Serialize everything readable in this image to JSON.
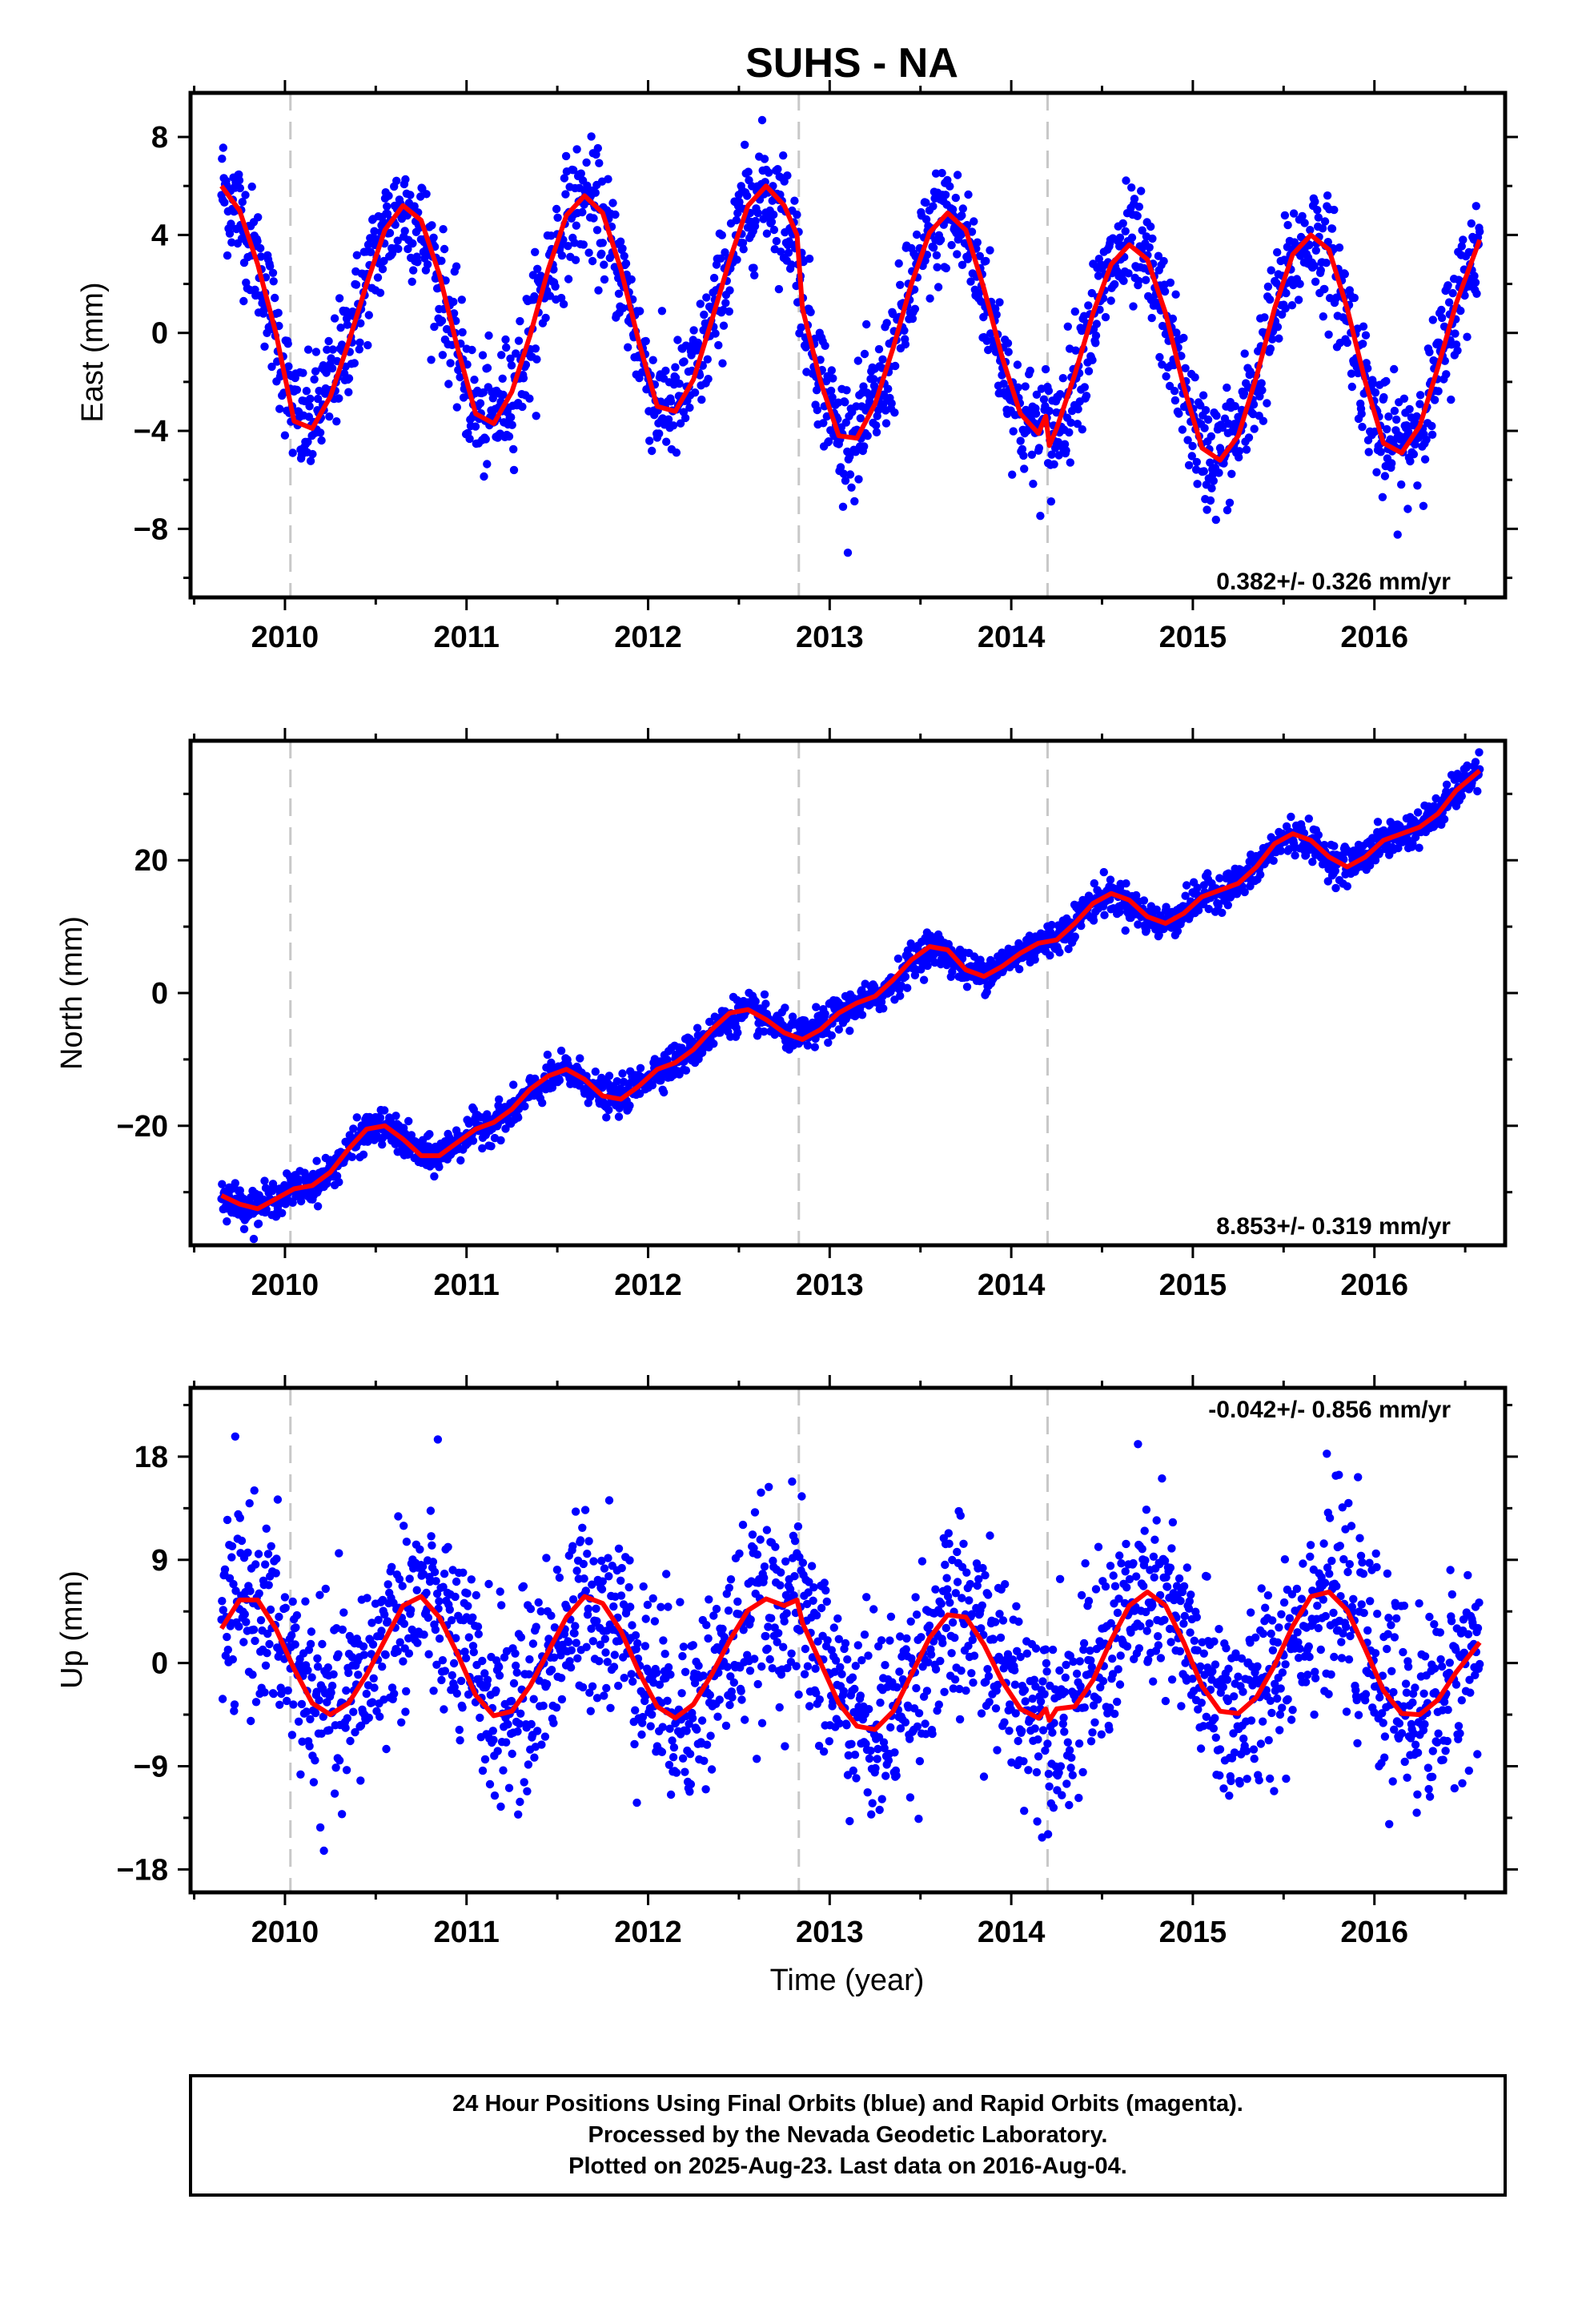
{
  "page": {
    "title": "SUHS - NA"
  },
  "colors": {
    "final_orbits": "#0000ff",
    "model_fit": "#ff0000",
    "reference_lines": "#c8c8c8",
    "frame": "#000000"
  },
  "chart_data": [
    {
      "type": "scatter",
      "component": "east",
      "ylabel": "East (mm)",
      "xlabel": "",
      "xlim": [
        2009.48,
        2016.72
      ],
      "ylim": [
        -10.8,
        9.8
      ],
      "yticks": [
        -8,
        -4,
        0,
        4,
        8
      ],
      "yticks_minor_step": 2,
      "xticks": [
        2010,
        2011,
        2012,
        2013,
        2014,
        2015,
        2016
      ],
      "equipment_change_epochs": [
        2010.03,
        2012.83,
        2014.2
      ],
      "rate_label": "0.382+/- 0.326 mm/yr",
      "rate_position": "bottom-right",
      "series": [
        {
          "type": "scatter",
          "values_description_removed": true,
          "x": [
            2009.65,
            2009.85,
            2010.0,
            2010.1,
            2010.3,
            2010.5,
            2010.65,
            2010.85,
            2011.05,
            2011.3,
            2011.5,
            2011.65,
            2011.85,
            2012.05,
            2012.3,
            2012.5,
            2012.65,
            2012.85,
            2013.05,
            2013.3,
            2013.5,
            2013.65,
            2013.85,
            2014.05,
            2014.2,
            2014.3,
            2014.5,
            2014.65,
            2014.85,
            2015.05,
            2015.3,
            2015.5,
            2015.65,
            2015.85,
            2016.05,
            2016.3,
            2016.55
          ],
          "y": [
            6.0,
            3.2,
            -1.5,
            -3.8,
            -0.5,
            3.4,
            5.1,
            1.6,
            -3.6,
            -1.8,
            3.5,
            5.6,
            2.0,
            -3.2,
            -1.2,
            4.2,
            6.0,
            2.2,
            -4.3,
            -2.4,
            2.6,
            4.9,
            1.5,
            -3.8,
            -4.2,
            -3.0,
            1.2,
            3.6,
            -0.2,
            -5.2,
            -3.5,
            1.5,
            4.0,
            0.5,
            -4.8,
            -3.0,
            3.8
          ]
        },
        {
          "name": "",
          "type": "line",
          "x": [
            2009.65,
            2009.75,
            2009.85,
            2009.95,
            2010.05,
            2010.15,
            2010.25,
            2010.35,
            2010.45,
            2010.55,
            2010.65,
            2010.75,
            2010.85,
            2010.95,
            2011.05,
            2011.15,
            2011.25,
            2011.35,
            2011.45,
            2011.55,
            2011.65,
            2011.75,
            2011.85,
            2011.95,
            2012.05,
            2012.15,
            2012.25,
            2012.35,
            2012.45,
            2012.55,
            2012.65,
            2012.75,
            2012.82,
            2012.85,
            2012.95,
            2013.05,
            2013.15,
            2013.25,
            2013.35,
            2013.45,
            2013.55,
            2013.65,
            2013.75,
            2013.85,
            2013.95,
            2014.05,
            2014.15,
            2014.19,
            2014.21,
            2014.25,
            2014.35,
            2014.45,
            2014.55,
            2014.65,
            2014.75,
            2014.85,
            2014.95,
            2015.05,
            2015.15,
            2015.25,
            2015.35,
            2015.45,
            2015.55,
            2015.65,
            2015.75,
            2015.85,
            2015.95,
            2016.05,
            2016.15,
            2016.25,
            2016.35,
            2016.45,
            2016.58
          ],
          "y": [
            6.0,
            5.0,
            2.8,
            0.0,
            -3.6,
            -3.9,
            -2.6,
            -0.4,
            2.0,
            4.2,
            5.2,
            4.6,
            2.4,
            -0.6,
            -3.3,
            -3.7,
            -2.4,
            -0.1,
            2.6,
            4.8,
            5.6,
            4.9,
            2.6,
            -0.4,
            -3.0,
            -3.2,
            -1.9,
            0.5,
            3.0,
            5.2,
            6.0,
            5.2,
            4.0,
            1.0,
            -2.0,
            -4.2,
            -4.3,
            -2.9,
            -0.6,
            2.0,
            4.1,
            4.9,
            4.2,
            1.8,
            -1.0,
            -3.3,
            -4.1,
            -3.4,
            -4.6,
            -3.9,
            -1.7,
            0.8,
            2.8,
            3.6,
            3.0,
            0.8,
            -2.2,
            -4.7,
            -5.2,
            -4.2,
            -1.8,
            1.0,
            3.2,
            4.0,
            3.4,
            1.0,
            -2.0,
            -4.5,
            -4.9,
            -3.8,
            -1.4,
            1.2,
            3.8
          ]
        }
      ]
    },
    {
      "type": "scatter",
      "component": "north",
      "ylabel": "North (mm)",
      "xlabel": "",
      "xlim": [
        2009.48,
        2016.72
      ],
      "ylim": [
        -38,
        38
      ],
      "yticks": [
        -20,
        0,
        20
      ],
      "yticks_minor_step": 10,
      "xticks": [
        2010,
        2011,
        2012,
        2013,
        2014,
        2015,
        2016
      ],
      "equipment_change_epochs": [
        2010.03,
        2012.83,
        2014.2
      ],
      "rate_label": "8.853+/- 0.319 mm/yr",
      "rate_position": "bottom-right",
      "series": [
        {
          "type": "scatter",
          "x": [
            2009.65,
            2009.8,
            2010.0,
            2010.2,
            2010.5,
            2010.8,
            2011.0,
            2011.3,
            2011.55,
            2011.8,
            2012.0,
            2012.3,
            2012.55,
            2012.8,
            2013.0,
            2013.3,
            2013.55,
            2013.75,
            2014.0,
            2014.2,
            2014.5,
            2014.8,
            2015.0,
            2015.3,
            2015.55,
            2015.8,
            2016.0,
            2016.3,
            2016.58
          ],
          "y": [
            -30,
            -32,
            -30,
            -28,
            -20,
            -25,
            -21,
            -18,
            -12,
            -16,
            -12,
            -8,
            -3,
            -6,
            -4,
            -1,
            7,
            3,
            6,
            8,
            15,
            10,
            14,
            17,
            24,
            19,
            22,
            26,
            34
          ]
        },
        {
          "name": "",
          "type": "line",
          "x": [
            2009.65,
            2009.75,
            2009.85,
            2009.95,
            2010.05,
            2010.15,
            2010.25,
            2010.35,
            2010.45,
            2010.55,
            2010.65,
            2010.75,
            2010.85,
            2010.95,
            2011.05,
            2011.15,
            2011.25,
            2011.35,
            2011.45,
            2011.55,
            2011.65,
            2011.75,
            2011.85,
            2011.95,
            2012.05,
            2012.15,
            2012.25,
            2012.35,
            2012.45,
            2012.55,
            2012.65,
            2012.75,
            2012.85,
            2012.95,
            2013.05,
            2013.15,
            2013.25,
            2013.35,
            2013.45,
            2013.55,
            2013.65,
            2013.75,
            2013.85,
            2013.95,
            2014.05,
            2014.15,
            2014.25,
            2014.35,
            2014.45,
            2014.55,
            2014.65,
            2014.75,
            2014.85,
            2014.95,
            2015.05,
            2015.15,
            2015.25,
            2015.35,
            2015.45,
            2015.55,
            2015.65,
            2015.75,
            2015.85,
            2015.95,
            2016.05,
            2016.15,
            2016.25,
            2016.35,
            2016.45,
            2016.58
          ],
          "y": [
            -30.5,
            -31.8,
            -32.5,
            -31.0,
            -29.5,
            -29.0,
            -27.0,
            -23.5,
            -20.5,
            -20.0,
            -22.0,
            -24.5,
            -24.5,
            -22.5,
            -20.5,
            -19.5,
            -17.5,
            -14.5,
            -12.5,
            -11.5,
            -13.0,
            -15.5,
            -16.0,
            -14.0,
            -11.5,
            -10.5,
            -8.5,
            -5.5,
            -3.0,
            -2.5,
            -4.0,
            -6.0,
            -7.0,
            -5.5,
            -3.0,
            -1.5,
            -0.5,
            2.0,
            5.0,
            7.0,
            6.5,
            3.5,
            2.5,
            4.0,
            6.0,
            7.5,
            8.0,
            10.5,
            13.5,
            15.0,
            14.0,
            11.5,
            10.5,
            12.0,
            14.5,
            15.5,
            16.5,
            19.0,
            22.5,
            24.0,
            23.0,
            20.5,
            19.0,
            20.5,
            23.0,
            24.0,
            25.0,
            27.0,
            30.5,
            33.5
          ]
        }
      ]
    },
    {
      "type": "scatter",
      "component": "up",
      "ylabel": "Up (mm)",
      "xlabel": "Time (year)",
      "xlim": [
        2009.48,
        2016.72
      ],
      "ylim": [
        -20,
        24
      ],
      "yticks": [
        -18,
        -9,
        0,
        9,
        18
      ],
      "yticks_minor_step": 4.5,
      "xticks": [
        2010,
        2011,
        2012,
        2013,
        2014,
        2015,
        2016
      ],
      "equipment_change_epochs": [
        2010.03,
        2012.83,
        2014.2
      ],
      "rate_label": "-0.042+/- 0.856 mm/yr",
      "rate_position": "top-right",
      "series": [
        {
          "type": "scatter",
          "x": [
            2009.65,
            2009.8,
            2010.0,
            2010.3,
            2010.55,
            2010.8,
            2011.05,
            2011.3,
            2011.55,
            2011.8,
            2012.05,
            2012.3,
            2012.55,
            2012.8,
            2013.05,
            2013.3,
            2013.55,
            2013.8,
            2014.05,
            2014.3,
            2014.55,
            2014.8,
            2015.05,
            2015.3,
            2015.55,
            2015.8,
            2016.05,
            2016.3,
            2016.55
          ],
          "y": [
            3,
            6,
            1,
            -5,
            2,
            6,
            1,
            -5,
            1,
            6,
            1,
            -5,
            2,
            6,
            0,
            -6,
            -1,
            4,
            0,
            -5,
            2,
            6,
            0,
            -5,
            1,
            6,
            0,
            -5,
            1
          ]
        },
        {
          "name": "",
          "type": "line",
          "x": [
            2009.65,
            2009.75,
            2009.85,
            2009.95,
            2010.05,
            2010.15,
            2010.25,
            2010.35,
            2010.45,
            2010.55,
            2010.65,
            2010.75,
            2010.85,
            2010.95,
            2011.05,
            2011.15,
            2011.25,
            2011.35,
            2011.45,
            2011.55,
            2011.65,
            2011.75,
            2011.85,
            2011.95,
            2012.05,
            2012.15,
            2012.25,
            2012.35,
            2012.45,
            2012.55,
            2012.65,
            2012.75,
            2012.82,
            2012.85,
            2012.95,
            2013.05,
            2013.15,
            2013.25,
            2013.35,
            2013.45,
            2013.55,
            2013.65,
            2013.75,
            2013.85,
            2013.95,
            2014.05,
            2014.15,
            2014.19,
            2014.21,
            2014.25,
            2014.35,
            2014.45,
            2014.55,
            2014.65,
            2014.75,
            2014.85,
            2014.95,
            2015.05,
            2015.15,
            2015.25,
            2015.35,
            2015.45,
            2015.55,
            2015.65,
            2015.75,
            2015.85,
            2015.95,
            2016.05,
            2016.15,
            2016.25,
            2016.35,
            2016.45,
            2016.58
          ],
          "y": [
            3.0,
            5.5,
            5.5,
            3.0,
            -0.5,
            -3.5,
            -4.5,
            -3.5,
            -1.0,
            2.0,
            5.0,
            5.8,
            4.0,
            0.8,
            -2.8,
            -4.6,
            -4.2,
            -2.0,
            1.0,
            4.0,
            5.8,
            5.2,
            2.8,
            -0.8,
            -3.8,
            -4.8,
            -3.6,
            -1.0,
            2.0,
            4.6,
            5.6,
            5.0,
            5.5,
            3.5,
            0.0,
            -3.5,
            -5.5,
            -5.8,
            -4.2,
            -1.0,
            2.2,
            4.2,
            4.0,
            1.6,
            -1.6,
            -4.0,
            -4.8,
            -4.0,
            -5.0,
            -4.0,
            -3.8,
            -1.5,
            2.0,
            5.0,
            6.2,
            5.0,
            1.8,
            -2.0,
            -4.2,
            -4.4,
            -3.0,
            -0.2,
            3.2,
            5.8,
            6.2,
            4.6,
            1.2,
            -2.4,
            -4.4,
            -4.5,
            -3.2,
            -0.8,
            1.8
          ]
        }
      ]
    }
  ],
  "caption": {
    "line1": "24 Hour Positions Using Final Orbits (blue) and Rapid Orbits (magenta).",
    "line2": "Processed by the Nevada Geodetic Laboratory.",
    "line3": "Plotted on 2025-Aug-23. Last data on 2016-Aug-04."
  }
}
